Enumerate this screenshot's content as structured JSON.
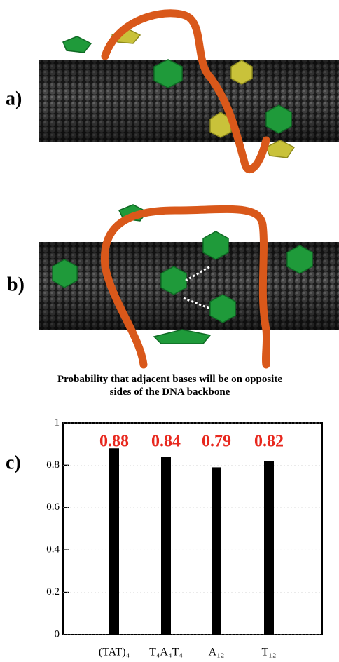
{
  "panel_labels": [
    "a)",
    "b)",
    "c)"
  ],
  "chart_data": {
    "type": "bar",
    "title": "Probability that adjacent bases will be on opposite sides of the DNA backbone",
    "categories": [
      "(TAT)₄",
      "T₄A₄T₄",
      "A₁₂",
      "T₁₂"
    ],
    "values": [
      0.88,
      0.84,
      0.79,
      0.82
    ],
    "color": "#000000",
    "value_label_color": "#e8281e",
    "ylim": [
      0,
      1
    ],
    "yticks": [
      0,
      0.2,
      0.4,
      0.6,
      0.8,
      1
    ],
    "grid": true
  }
}
